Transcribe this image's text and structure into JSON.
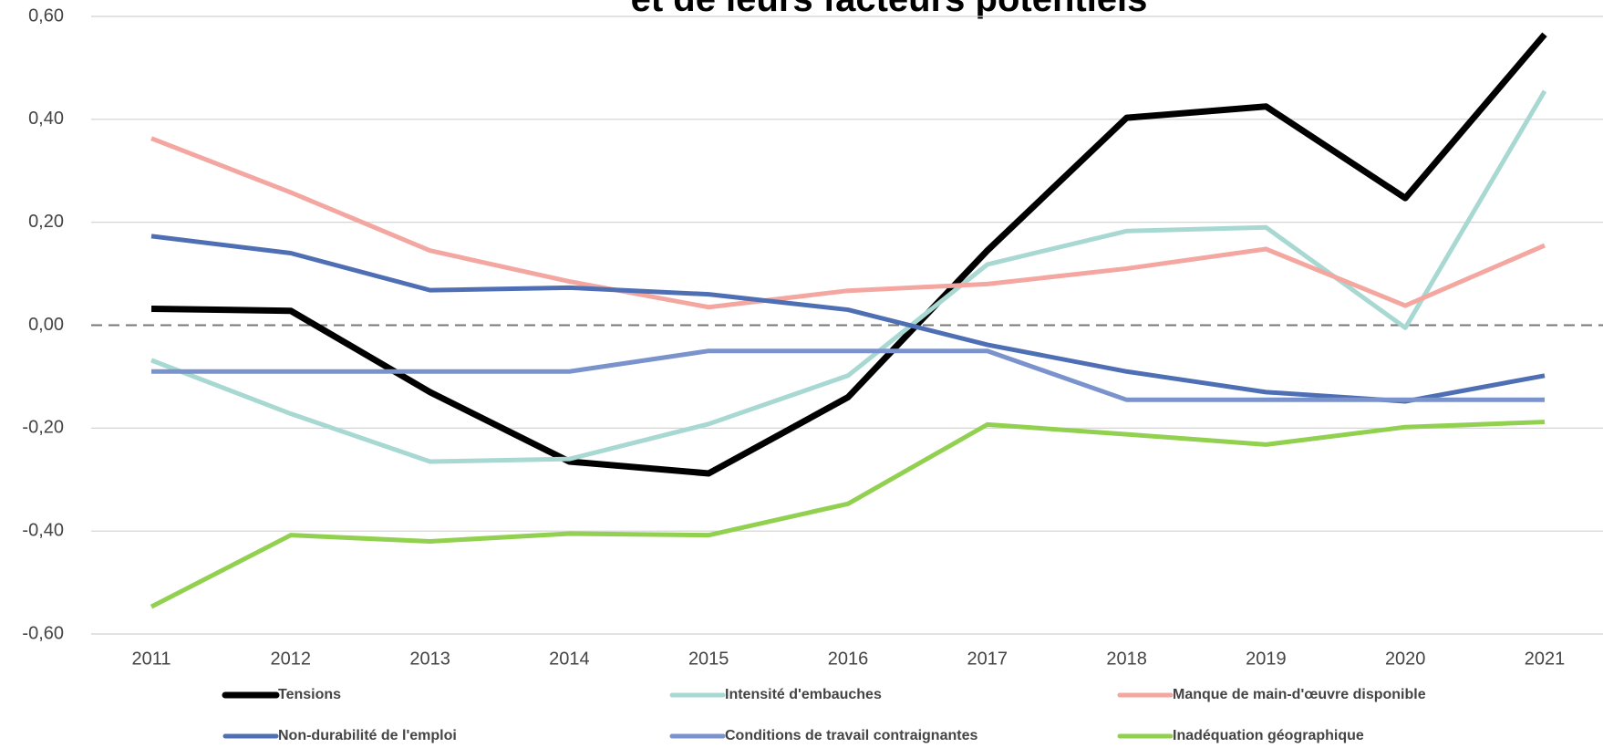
{
  "chart_data": {
    "type": "line",
    "title": "et de leurs facteurs potentiels",
    "categories": [
      "2011",
      "2012",
      "2013",
      "2014",
      "2015",
      "2016",
      "2017",
      "2018",
      "2019",
      "2020",
      "2021"
    ],
    "series": [
      {
        "name": "Tensions",
        "color": "#000000",
        "values": [
          0.032,
          0.028,
          -0.13,
          -0.265,
          -0.288,
          -0.14,
          0.145,
          0.403,
          0.425,
          0.247,
          0.565
        ]
      },
      {
        "name": "Intensité d'embauches",
        "color": "#a8d8d2",
        "values": [
          -0.068,
          -0.172,
          -0.265,
          -0.26,
          -0.192,
          -0.098,
          0.118,
          0.183,
          0.19,
          -0.005,
          0.455
        ]
      },
      {
        "name": "Manque de main-d'œuvre disponible",
        "color": "#f4a6a0",
        "values": [
          0.363,
          0.258,
          0.145,
          0.085,
          0.035,
          0.067,
          0.08,
          0.11,
          0.148,
          0.038,
          0.155
        ]
      },
      {
        "name": "Non-durabilité de l'emploi",
        "color": "#4f6fb5",
        "values": [
          0.173,
          0.14,
          0.068,
          0.073,
          0.06,
          0.03,
          -0.038,
          -0.09,
          -0.13,
          -0.148,
          -0.098
        ]
      },
      {
        "name": "Conditions de travail contraignantes",
        "color": "#7b93cc",
        "values": [
          -0.09,
          -0.09,
          -0.09,
          -0.09,
          -0.05,
          -0.05,
          -0.05,
          -0.145,
          -0.145,
          -0.145,
          -0.145
        ]
      },
      {
        "name": "Inadéquation géographique",
        "color": "#92d050",
        "values": [
          -0.547,
          -0.408,
          -0.42,
          -0.405,
          -0.408,
          -0.347,
          -0.193,
          -0.212,
          -0.232,
          -0.198,
          -0.188
        ]
      }
    ],
    "ylim": [
      -0.6,
      0.6
    ],
    "yticks": [
      {
        "value": -0.6,
        "label": "-0,60"
      },
      {
        "value": -0.4,
        "label": "-0,40"
      },
      {
        "value": -0.2,
        "label": "-0,20"
      },
      {
        "value": 0,
        "label": "0,00"
      },
      {
        "value": 0.2,
        "label": "0,20"
      },
      {
        "value": 0.4,
        "label": "0,40"
      },
      {
        "value": 0.6,
        "label": "0,60"
      }
    ],
    "grid": true
  }
}
